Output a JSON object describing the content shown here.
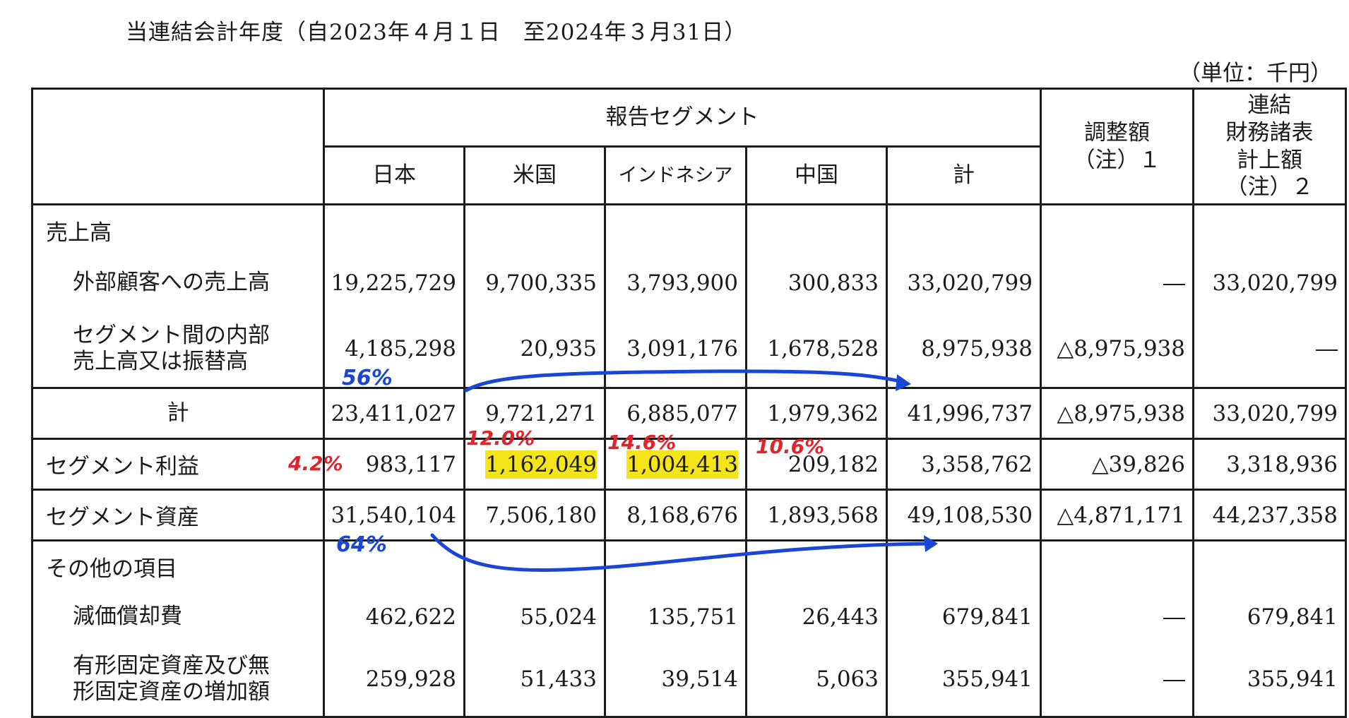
{
  "period": "当連結会計年度（自2023年４月１日　至2024年３月31日）",
  "unit": "（単位：千円）",
  "headers": {
    "reporting_segments": "報告セグメント",
    "japan": "日本",
    "us": "米国",
    "indonesia": "インドネシア",
    "china": "中国",
    "total": "計",
    "adjustment_line1": "調整額",
    "adjustment_line2": "（注）１",
    "consolidated_line1": "連結",
    "consolidated_line2": "財務諸表",
    "consolidated_line3": "計上額",
    "consolidated_line4": "（注）２"
  },
  "rows": {
    "sales_label": "売上高",
    "external": {
      "label": "外部顧客への売上高",
      "values": [
        "19,225,729",
        "9,700,335",
        "3,793,900",
        "300,833",
        "33,020,799",
        "―",
        "33,020,799"
      ]
    },
    "intersegment": {
      "label_line1": "セグメント間の内部",
      "label_line2": "売上高又は振替高",
      "values": [
        "4,185,298",
        "20,935",
        "3,091,176",
        "1,678,528",
        "8,975,938",
        "△8,975,938",
        "―"
      ]
    },
    "total": {
      "label": "計",
      "values": [
        "23,411,027",
        "9,721,271",
        "6,885,077",
        "1,979,362",
        "41,996,737",
        "△8,975,938",
        "33,020,799"
      ]
    },
    "profit": {
      "label": "セグメント利益",
      "values": [
        "983,117",
        "1,162,049",
        "1,004,413",
        "209,182",
        "3,358,762",
        "△39,826",
        "3,318,936"
      ]
    },
    "assets": {
      "label": "セグメント資産",
      "values": [
        "31,540,104",
        "7,506,180",
        "8,168,676",
        "1,893,568",
        "49,108,530",
        "△4,871,171",
        "44,237,358"
      ]
    },
    "other_label": "その他の項目",
    "depreciation": {
      "label": "減価償却費",
      "values": [
        "462,622",
        "55,024",
        "135,751",
        "26,443",
        "679,841",
        "―",
        "679,841"
      ]
    },
    "capex": {
      "label_line1": "有形固定資産及び無",
      "label_line2": "形固定資産の増加額",
      "values": [
        "259,928",
        "51,433",
        "39,514",
        "5,063",
        "355,941",
        "―",
        "355,941"
      ]
    }
  },
  "annotations": {
    "japan_sales_share": "56%",
    "japan_assets_share": "64%",
    "japan_margin": "4.2%",
    "us_margin": "12.0%",
    "indonesia_margin": "14.6%",
    "china_margin": "10.6%",
    "highlight_color": "#f3e519",
    "red_ink": "#e0242a",
    "blue_ink": "#1a46d6"
  }
}
